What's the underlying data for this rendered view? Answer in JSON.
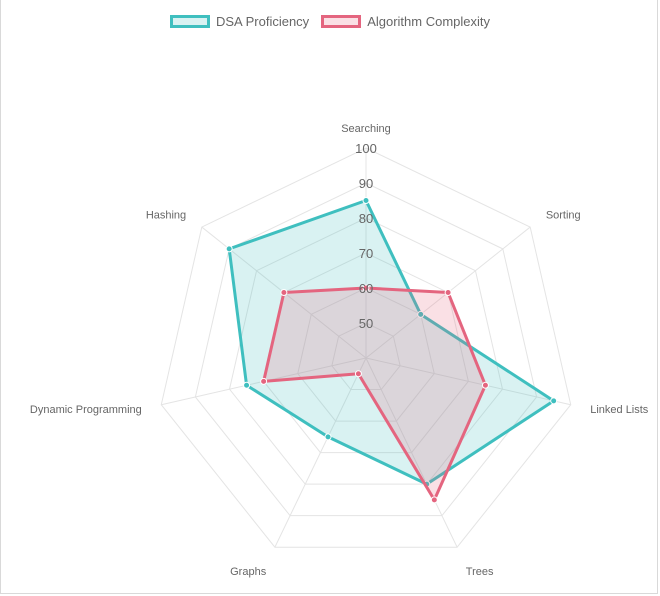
{
  "chart_data": {
    "type": "radar",
    "categories": [
      "Searching",
      "Sorting",
      "Linked Lists",
      "Trees",
      "Graphs",
      "Dynamic Programming",
      "Hashing"
    ],
    "scale": {
      "min": 40,
      "max": 100,
      "step": 10,
      "tick_labels": [
        "50",
        "60",
        "70",
        "80",
        "90",
        "100"
      ]
    },
    "series": [
      {
        "name": "DSA Proficiency",
        "values": [
          85,
          60,
          95,
          80,
          65,
          75,
          90
        ],
        "color": "#3fbfbf",
        "fill": "rgba(63,191,191,0.2)"
      },
      {
        "name": "Algorithm Complexity",
        "values": [
          60,
          70,
          75,
          85,
          45,
          70,
          70
        ],
        "color": "#e4657f",
        "fill": "rgba(228,101,127,0.2)"
      }
    ],
    "legend_position": "top",
    "grid": true
  }
}
